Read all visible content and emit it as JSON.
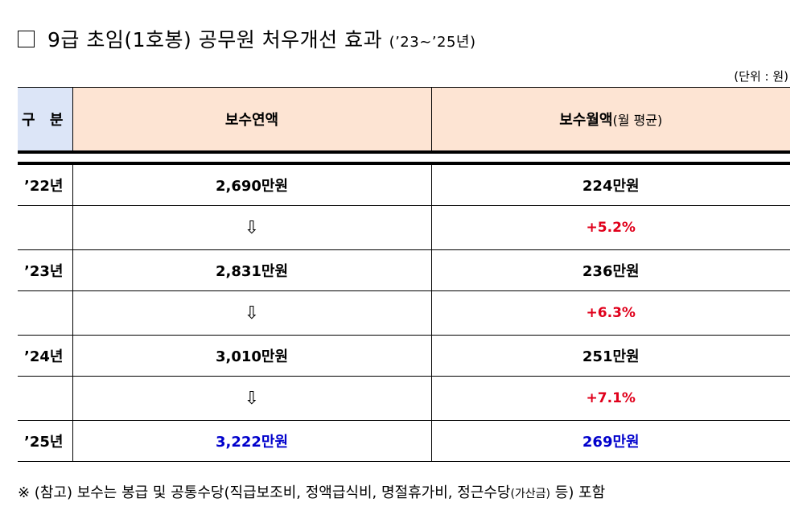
{
  "title": {
    "main": "9급 초임(1호봉) 공무원 처우개선 효과",
    "sub": "(’23~’25년)"
  },
  "unit": "(단위 : 원)",
  "table": {
    "headers": {
      "category": "구 분",
      "annual": "보수연액",
      "monthly": "보수월액",
      "monthly_note": "(월 평균)"
    },
    "rows": [
      {
        "year": "’22년",
        "annual": "2,690만원",
        "monthly": "224만원"
      },
      {
        "arrow": "⇩",
        "rate": "+5.2%"
      },
      {
        "year": "’23년",
        "annual": "2,831만원",
        "monthly": "236만원"
      },
      {
        "arrow": "⇩",
        "rate": "+6.3%"
      },
      {
        "year": "’24년",
        "annual": "3,010만원",
        "monthly": "251만원"
      },
      {
        "arrow": "⇩",
        "rate": "+7.1%"
      },
      {
        "year": "’25년",
        "annual": "3,222만원",
        "monthly": "269만원"
      }
    ]
  },
  "note": {
    "main": "※ (참고) 보수는 봉급 및 공통수당(직급보조비, 정액급식비, 명절휴가비, 정근수당",
    "small": "(가산금)",
    "end": " 등) 포함"
  },
  "colors": {
    "header_bg": "#fde4d3",
    "category_bg": "#dce5f7",
    "rate_red": "#e0001b",
    "highlight_blue": "#0000cc"
  }
}
